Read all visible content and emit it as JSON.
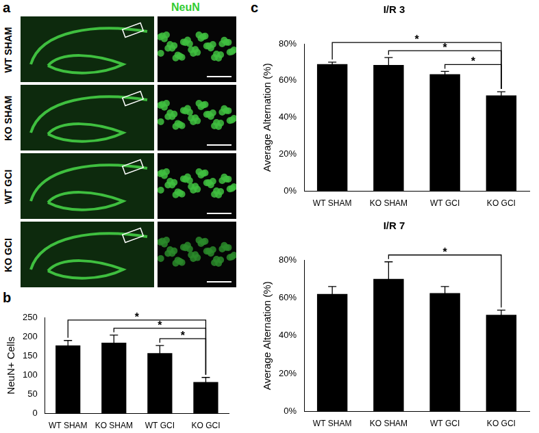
{
  "panel_labels": [
    "a",
    "b",
    "c"
  ],
  "image_panel": {
    "title": "NeuN",
    "rows": [
      "WT SHAM",
      "KO SHAM",
      "WT GCI",
      "KO GCI"
    ]
  },
  "chart_data": [
    {
      "type": "bar",
      "y_label": "NeuN+ Cells",
      "categories": [
        "WT SHAM",
        "KO SHAM",
        "WT GCI",
        "KO GCI"
      ],
      "values": [
        177,
        184,
        157,
        82
      ],
      "errors": [
        13,
        20,
        20,
        12
      ],
      "color": "#000000",
      "ylim": [
        0,
        250
      ],
      "yticks": [
        0,
        50,
        100,
        150,
        200,
        250
      ],
      "grid": false,
      "significance": [
        {
          "from": "WT SHAM",
          "to": "KO GCI",
          "label": "*"
        },
        {
          "from": "KO SHAM",
          "to": "KO GCI",
          "label": "*"
        },
        {
          "from": "WT GCI",
          "to": "KO GCI",
          "label": "*"
        }
      ]
    },
    {
      "type": "bar",
      "title": "I/R 3",
      "y_label": "Average Alternation (%)",
      "categories": [
        "WT SHAM",
        "KO SHAM",
        "WT GCI",
        "KO GCI"
      ],
      "values": [
        69,
        68.5,
        63.5,
        52
      ],
      "errors": [
        1,
        4,
        1.5,
        2
      ],
      "color": "#000000",
      "ylim": [
        0,
        80
      ],
      "yticks": [
        {
          "value": 0,
          "label": "0%"
        },
        {
          "value": 20,
          "label": "20%"
        },
        {
          "value": 40,
          "label": "40%"
        },
        {
          "value": 60,
          "label": "60%"
        },
        {
          "value": 80,
          "label": "80%"
        }
      ],
      "grid": false,
      "significance": [
        {
          "from": "WT SHAM",
          "to": "KO GCI",
          "label": "*"
        },
        {
          "from": "KO SHAM",
          "to": "KO GCI",
          "label": "*"
        },
        {
          "from": "WT GCI",
          "to": "KO GCI",
          "label": "*"
        }
      ]
    },
    {
      "type": "bar",
      "title": "I/R 7",
      "y_label": "Average Alternation (%)",
      "categories": [
        "WT SHAM",
        "KO SHAM",
        "WT GCI",
        "KO GCI"
      ],
      "values": [
        62,
        70,
        62.5,
        51
      ],
      "errors": [
        4,
        9,
        3.5,
        2.5
      ],
      "color": "#000000",
      "ylim": [
        0,
        80
      ],
      "yticks": [
        {
          "value": 0,
          "label": "0%"
        },
        {
          "value": 20,
          "label": "20%"
        },
        {
          "value": 40,
          "label": "40%"
        },
        {
          "value": 60,
          "label": "60%"
        },
        {
          "value": 80,
          "label": "80%"
        }
      ],
      "grid": false,
      "significance": [
        {
          "from": "KO SHAM",
          "to": "KO GCI",
          "label": "*"
        }
      ]
    }
  ]
}
